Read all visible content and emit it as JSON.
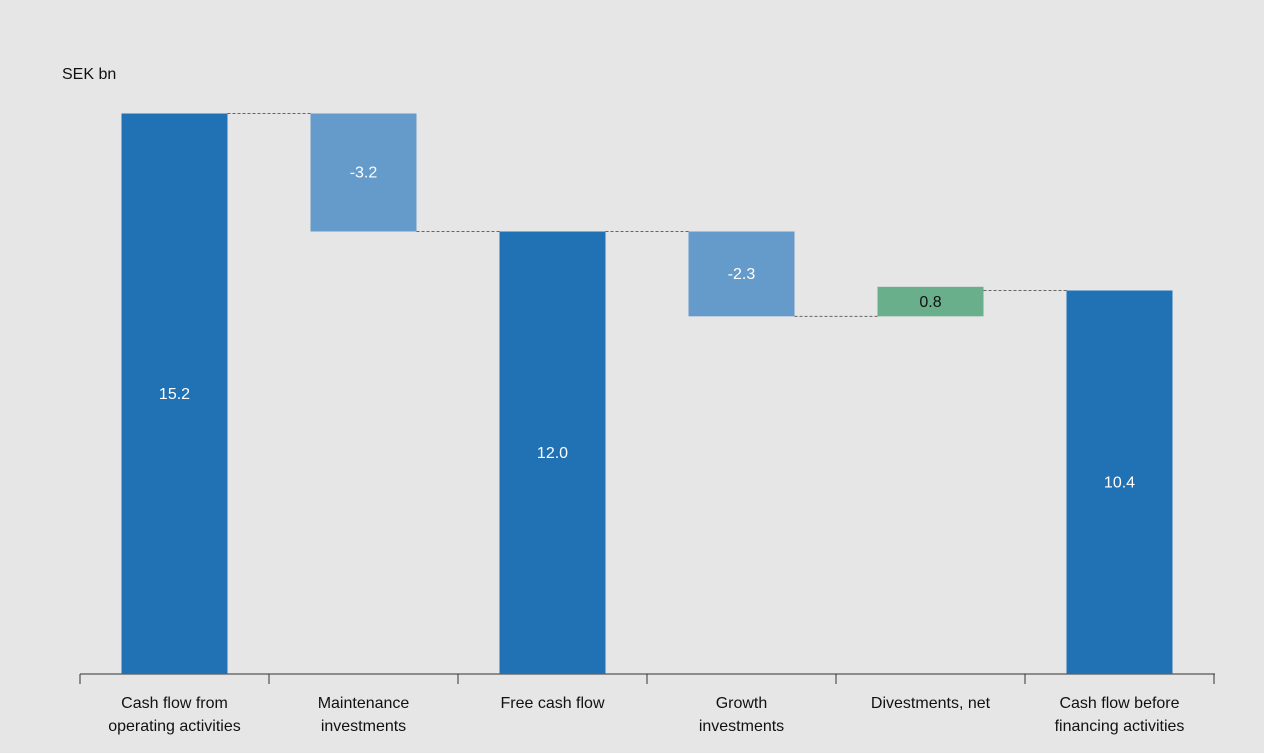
{
  "chart_data": {
    "type": "waterfall",
    "y_label": "SEK bn",
    "categories": [
      "Cash flow from\noperating activities",
      "Maintenance\ninvestments",
      "Free cash flow",
      "Growth\ninvestments",
      "Divestments, net",
      "Cash flow before\nfinancing activities"
    ],
    "measure": [
      "total",
      "relative",
      "total",
      "relative",
      "relative",
      "total"
    ],
    "values": [
      15.2,
      -3.2,
      12.0,
      -2.3,
      0.8,
      10.4
    ],
    "value_labels": [
      "15.2",
      "-3.2",
      "12.0",
      "-2.3",
      "0.8",
      "10.4"
    ],
    "colors": {
      "total": "#2171b5",
      "decrease": "#659bca",
      "increase": "#6aaf8b"
    },
    "ylim": [
      0,
      16
    ]
  }
}
